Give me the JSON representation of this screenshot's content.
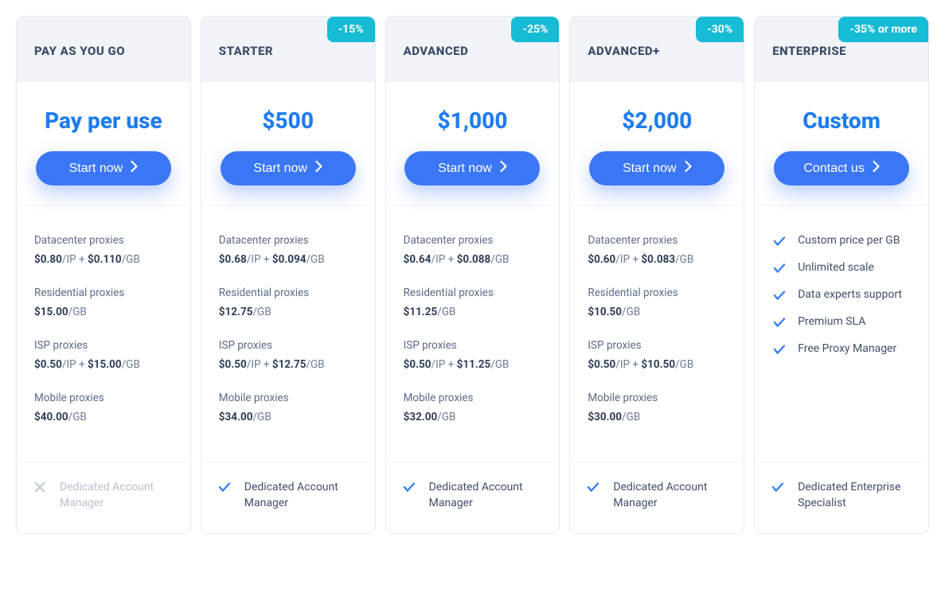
{
  "colors": {
    "badge_bg": "#15bcd4",
    "price_text": "#1f7cf0",
    "button_bg": "#3b76f6",
    "check_stroke": "#2f7ef1",
    "x_stroke": "#b6c0d0",
    "header_bg": "#f0f3f8",
    "border": "#e4e8ef"
  },
  "plans": [
    {
      "name": "PAY AS YOU GO",
      "badge": null,
      "price": "Pay per use",
      "cta": "Start now",
      "features": [
        {
          "label": "Datacenter proxies",
          "price_html": "<b>$0.80</b>/IP + <b>$0.110</b>/GB"
        },
        {
          "label": "Residential proxies",
          "price_html": "<b>$15.00</b>/GB"
        },
        {
          "label": "ISP proxies",
          "price_html": "<b>$0.50</b>/IP + <b>$15.00</b>/GB"
        },
        {
          "label": "Mobile proxies",
          "price_html": "<b>$40.00</b>/GB"
        }
      ],
      "footer": {
        "included": false,
        "text": "Dedicated Account Manager"
      }
    },
    {
      "name": "STARTER",
      "badge": "-15%",
      "price": "$500",
      "cta": "Start now",
      "features": [
        {
          "label": "Datacenter proxies",
          "price_html": "<b>$0.68</b>/IP + <b>$0.094</b>/GB"
        },
        {
          "label": "Residential proxies",
          "price_html": "<b>$12.75</b>/GB"
        },
        {
          "label": "ISP proxies",
          "price_html": "<b>$0.50</b>/IP + <b>$12.75</b>/GB"
        },
        {
          "label": "Mobile proxies",
          "price_html": "<b>$34.00</b>/GB"
        }
      ],
      "footer": {
        "included": true,
        "text": "Dedicated Account Manager"
      }
    },
    {
      "name": "ADVANCED",
      "badge": "-25%",
      "price": "$1,000",
      "cta": "Start now",
      "features": [
        {
          "label": "Datacenter proxies",
          "price_html": "<b>$0.64</b>/IP + <b>$0.088</b>/GB"
        },
        {
          "label": "Residential proxies",
          "price_html": "<b>$11.25</b>/GB"
        },
        {
          "label": "ISP proxies",
          "price_html": "<b>$0.50</b>/IP + <b>$11.25</b>/GB"
        },
        {
          "label": "Mobile proxies",
          "price_html": "<b>$32.00</b>/GB"
        }
      ],
      "footer": {
        "included": true,
        "text": "Dedicated Account Manager"
      }
    },
    {
      "name": "ADVANCED+",
      "badge": "-30%",
      "price": "$2,000",
      "cta": "Start now",
      "features": [
        {
          "label": "Datacenter proxies",
          "price_html": "<b>$0.60</b>/IP + <b>$0.083</b>/GB"
        },
        {
          "label": "Residential proxies",
          "price_html": "<b>$10.50</b>/GB"
        },
        {
          "label": "ISP proxies",
          "price_html": "<b>$0.50</b>/IP + <b>$10.50</b>/GB"
        },
        {
          "label": "Mobile proxies",
          "price_html": "<b>$30.00</b>/GB"
        }
      ],
      "footer": {
        "included": true,
        "text": "Dedicated Account Manager"
      }
    },
    {
      "name": "ENTERPRISE",
      "badge": "-35% or more",
      "price": "Custom",
      "cta": "Contact us",
      "enterprise_features": [
        "Custom price per GB",
        "Unlimited scale",
        "Data experts support",
        "Premium SLA",
        "Free Proxy Manager"
      ],
      "footer": {
        "included": true,
        "text": "Dedicated Enterprise Specialist"
      }
    }
  ]
}
